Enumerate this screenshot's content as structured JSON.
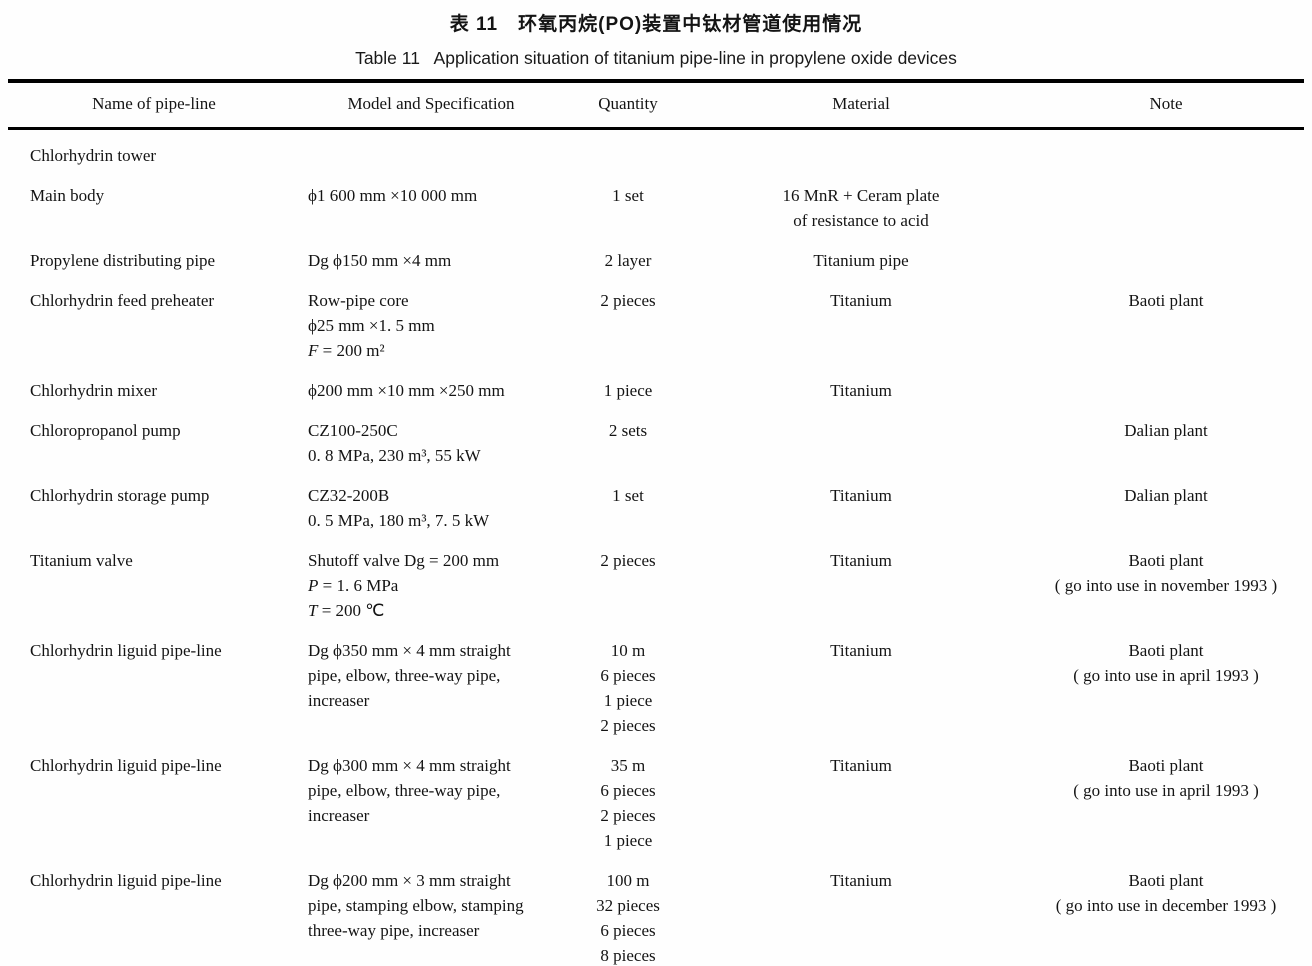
{
  "captions": {
    "zh": "表 11　环氧丙烷(PO)装置中钛材管道使用情况",
    "en": "Table 11   Application situation of titanium pipe-line in propylene oxide devices"
  },
  "table": {
    "headers": [
      "Name of pipe-line",
      "Model and Specification",
      "Quantity",
      "Material",
      "Note"
    ],
    "rows": [
      {
        "name": "Chlorhydrin tower",
        "model": [],
        "quantity": [],
        "material": [],
        "note": []
      },
      {
        "name": "Main body",
        "model": [
          "ϕ1 600 mm ×10 000 mm"
        ],
        "quantity": [
          "1 set"
        ],
        "material": [
          "16 MnR + Ceram plate",
          "of resistance to acid"
        ],
        "note": []
      },
      {
        "name": "Propylene distributing pipe",
        "model": [
          "Dg ϕ150 mm ×4 mm"
        ],
        "quantity": [
          "2 layer"
        ],
        "material": [
          "Titanium pipe"
        ],
        "note": []
      },
      {
        "name": "Chlorhydrin feed preheater",
        "model": [
          "Row-pipe core",
          "ϕ25 mm ×1. 5 mm",
          "F = 200 m²"
        ],
        "quantity": [
          "2 pieces"
        ],
        "material": [
          "Titanium"
        ],
        "note": [
          "Baoti plant"
        ]
      },
      {
        "name": "Chlorhydrin mixer",
        "model": [
          "ϕ200 mm ×10 mm ×250 mm"
        ],
        "quantity": [
          "1 piece"
        ],
        "material": [
          "Titanium"
        ],
        "note": []
      },
      {
        "name": "Chloropropanol pump",
        "model": [
          "CZ100-250C",
          "0. 8 MPa, 230 m³, 55 kW"
        ],
        "quantity": [
          "2 sets"
        ],
        "material": [],
        "note": [
          "Dalian plant"
        ]
      },
      {
        "name": "Chlorhydrin storage pump",
        "model": [
          "CZ32-200B",
          "0. 5 MPa, 180 m³, 7. 5 kW"
        ],
        "quantity": [
          "1 set"
        ],
        "material": [
          "Titanium"
        ],
        "note": [
          "Dalian plant"
        ]
      },
      {
        "name": "Titanium valve",
        "model": [
          "Shutoff valve Dg = 200 mm",
          "P = 1. 6 MPa",
          "T = 200 ℃"
        ],
        "quantity": [
          "2 pieces"
        ],
        "material": [
          "Titanium"
        ],
        "note": [
          "Baoti plant",
          "( go into use in november 1993 )"
        ]
      },
      {
        "name": "Chlorhydrin liguid pipe-line",
        "model": [
          "Dg ϕ350 mm × 4 mm straight",
          "pipe, elbow, three-way pipe,",
          "increaser"
        ],
        "quantity": [
          "10 m",
          "6 pieces",
          "1 piece",
          "2 pieces"
        ],
        "material": [
          "Titanium"
        ],
        "note": [
          "Baoti plant",
          "( go into use in april 1993 )"
        ]
      },
      {
        "name": "Chlorhydrin liguid pipe-line",
        "model": [
          "Dg ϕ300 mm × 4 mm straight",
          "pipe, elbow, three-way pipe,",
          "increaser"
        ],
        "quantity": [
          "35 m",
          "6 pieces",
          "2 pieces",
          "1 piece"
        ],
        "material": [
          "Titanium"
        ],
        "note": [
          "Baoti plant",
          "( go into use in april 1993 )"
        ]
      },
      {
        "name": "Chlorhydrin liguid pipe-line",
        "model": [
          "Dg ϕ200 mm × 3 mm straight",
          "pipe, stamping elbow, stamping",
          "three-way pipe, increaser"
        ],
        "quantity": [
          "100 m",
          "32 pieces",
          "6 pieces",
          "8 pieces"
        ],
        "material": [
          "Titanium"
        ],
        "note": [
          "Baoti plant",
          "( go into use in december 1993 )"
        ]
      }
    ]
  }
}
